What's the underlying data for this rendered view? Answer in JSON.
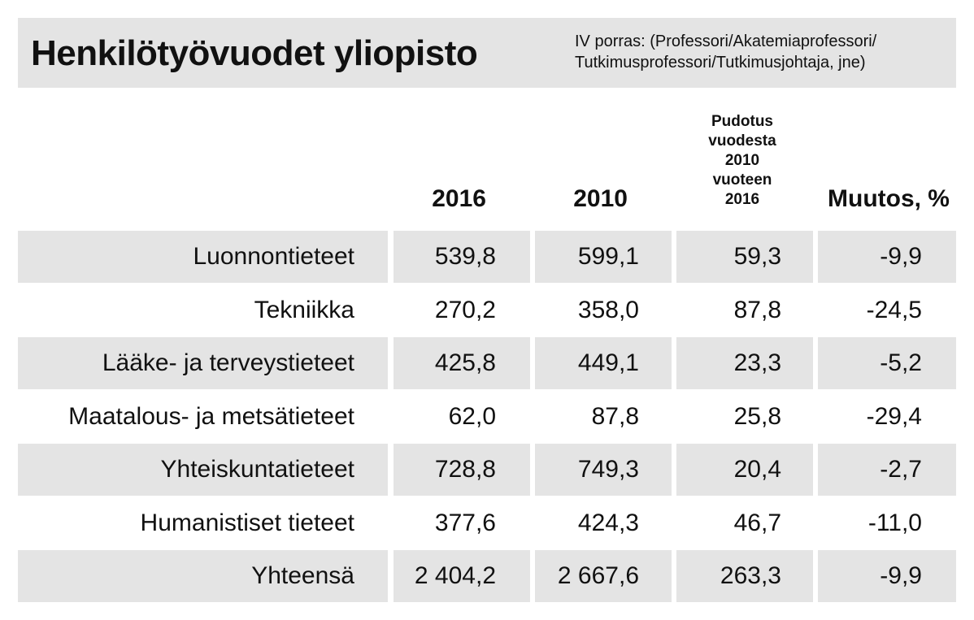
{
  "title": "Henkilötyövuodet yliopisto",
  "subtitle_lines": [
    "IV porras: (Professori/Akatemiaprofessori/",
    "Tutkimusprofessori/Tutkimusjohtaja, jne)"
  ],
  "columns": {
    "y2016": "2016",
    "y2010": "2010",
    "drop_lines": [
      "Pudotus",
      "vuodesta",
      "2010",
      "vuoteen",
      "2016"
    ],
    "change": "Muutos, %"
  },
  "chart_data": {
    "type": "table",
    "title": "Henkilötyövuodet yliopisto",
    "subtitle": "IV porras: (Professori/Akatemiaprofessori/Tutkimusprofessori/Tutkimusjohtaja, jne)",
    "headers": [
      "",
      "2016",
      "2010",
      "Pudotus vuodesta 2010 vuoteen 2016",
      "Muutos, %"
    ],
    "rows": [
      [
        "Luonnontieteet",
        "539,8",
        "599,1",
        "59,3",
        "-9,9"
      ],
      [
        "Tekniikka",
        "270,2",
        "358,0",
        "87,8",
        "-24,5"
      ],
      [
        "Lääke- ja terveystieteet",
        "425,8",
        "449,1",
        "23,3",
        "-5,2"
      ],
      [
        "Maatalous- ja metsätieteet",
        "62,0",
        "87,8",
        "25,8",
        "-29,4"
      ],
      [
        "Yhteiskuntatieteet",
        "728,8",
        "749,3",
        "20,4",
        "-2,7"
      ],
      [
        "Humanistiset tieteet",
        "377,6",
        "424,3",
        "46,7",
        "-11,0"
      ],
      [
        "Yhteensä",
        "2 404,2",
        "2 667,6",
        "263,3",
        "-9,9"
      ]
    ]
  },
  "colors": {
    "band": "#e4e4e4",
    "text": "#111111",
    "background": "#ffffff"
  }
}
